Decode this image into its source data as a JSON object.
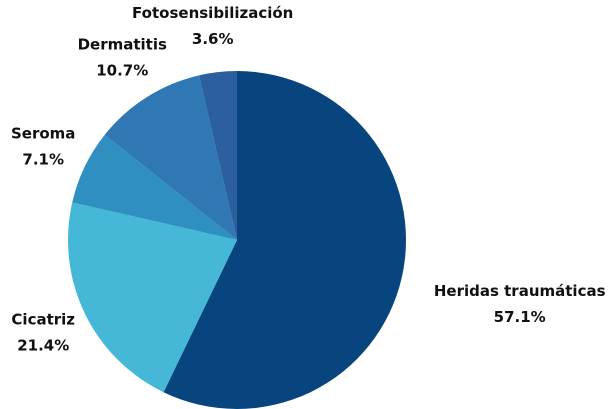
{
  "chart_data": {
    "type": "pie",
    "categories": [
      "Heridas traumáticas",
      "Cicatriz",
      "Seroma",
      "Dermatitis",
      "Fotosensibilización"
    ],
    "values": [
      57.1,
      21.4,
      7.1,
      10.7,
      3.6
    ],
    "value_labels": [
      "57.1%",
      "21.4%",
      "7.1%",
      "10.7%",
      "3.6%"
    ],
    "colors": [
      "#08457e",
      "#45b8d8",
      "#2e8fc0",
      "#2f78b4",
      "#2b5f9e"
    ]
  }
}
